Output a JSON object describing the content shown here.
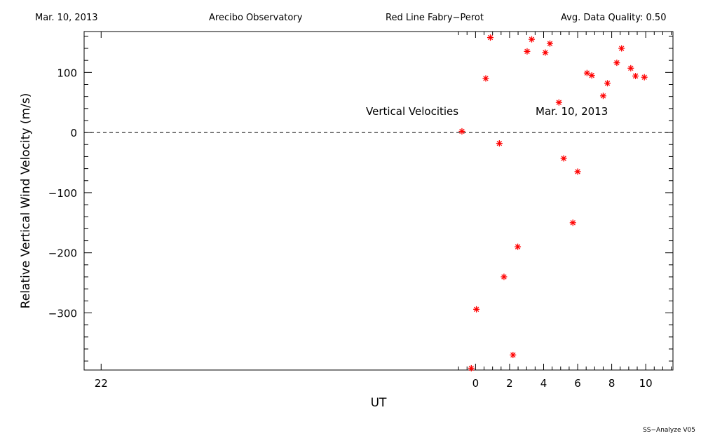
{
  "header": {
    "date": "Mar. 10, 2013",
    "site": "Arecibo Observatory",
    "instrument": "Red Line Fabry−Perot",
    "quality": "Avg. Data Quality: 0.50"
  },
  "footer": {
    "version": "SS−Analyze V05"
  },
  "chart_data": {
    "type": "scatter",
    "xlabel": "UT",
    "ylabel": "Relative Vertical Wind Velocity (m/s)",
    "xlim": [
      -23.0,
      11.6
    ],
    "ylim": [
      -395,
      168
    ],
    "x_ticks": [
      -22,
      0,
      2,
      4,
      6,
      8,
      10
    ],
    "x_tick_labels": [
      "22",
      "0",
      "2",
      "4",
      "6",
      "8",
      "10"
    ],
    "y_ticks": [
      -300,
      -200,
      -100,
      0,
      100
    ],
    "y_tick_labels": [
      "−300",
      "−200",
      "−100",
      "0",
      "100"
    ],
    "zero_line": "dashed",
    "annotations": [
      "Vertical Velocities",
      "Mar. 10, 2013"
    ],
    "marker": "asterisk",
    "color": "#ff0000",
    "points": [
      {
        "x": -0.8,
        "y": 2
      },
      {
        "x": -0.25,
        "y": -392
      },
      {
        "x": 0.05,
        "y": -294
      },
      {
        "x": 0.6,
        "y": 90
      },
      {
        "x": 0.87,
        "y": 158
      },
      {
        "x": 1.4,
        "y": -18
      },
      {
        "x": 1.67,
        "y": -240
      },
      {
        "x": 2.2,
        "y": -370
      },
      {
        "x": 2.48,
        "y": -190
      },
      {
        "x": 3.03,
        "y": 135
      },
      {
        "x": 3.3,
        "y": 155
      },
      {
        "x": 4.1,
        "y": 133
      },
      {
        "x": 4.37,
        "y": 148
      },
      {
        "x": 4.9,
        "y": 50
      },
      {
        "x": 5.18,
        "y": -43
      },
      {
        "x": 5.72,
        "y": -150
      },
      {
        "x": 6.0,
        "y": -65
      },
      {
        "x": 6.55,
        "y": 99
      },
      {
        "x": 6.83,
        "y": 95
      },
      {
        "x": 7.5,
        "y": 61
      },
      {
        "x": 7.75,
        "y": 82
      },
      {
        "x": 8.3,
        "y": 116
      },
      {
        "x": 8.58,
        "y": 140
      },
      {
        "x": 9.12,
        "y": 107
      },
      {
        "x": 9.4,
        "y": 94
      },
      {
        "x": 9.92,
        "y": 92
      }
    ]
  }
}
